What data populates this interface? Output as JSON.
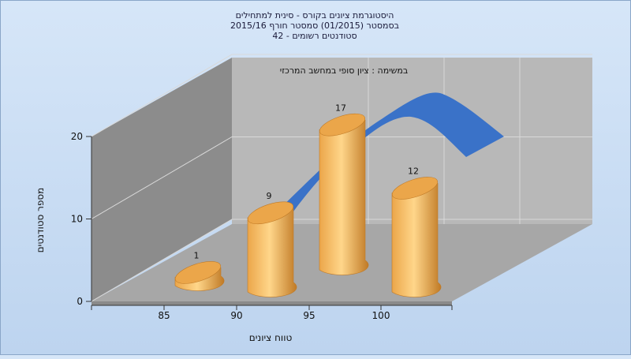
{
  "chart_data": {
    "type": "bar",
    "title_lines": [
      "היסטוגרמת ציונים בקורס - סינית למתחילים",
      "בסמסטר  (01/2015)  סמסטר חורף 2015/16",
      "סטודנטים רשומים - 42"
    ],
    "plot_note": "במשימה : ציון סופי במחשב המרכזי",
    "xlabel": "טווח ציונים",
    "ylabel": "מספר סטודנטים",
    "categories": [
      "85",
      "90",
      "95",
      "100"
    ],
    "values": [
      1,
      9,
      17,
      12
    ],
    "ylim": [
      0,
      20
    ],
    "yticks": [
      0,
      10,
      20
    ],
    "grid": true,
    "colors": {
      "bar_light": "#ffd68a",
      "bar_mid": "#eba64a",
      "bar_dark": "#c07a26",
      "curve": "#3a72c8",
      "back_wall": "#b8b8b8",
      "left_wall": "#8c8c8c",
      "floor": "#a7a7a7"
    }
  }
}
